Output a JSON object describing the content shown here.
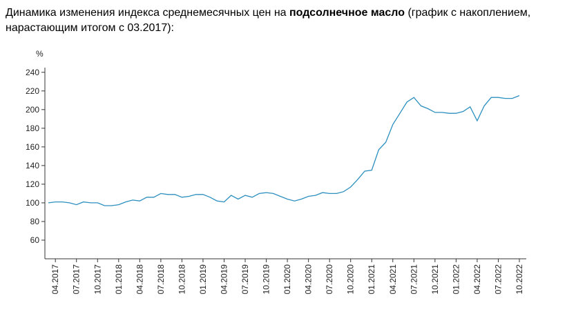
{
  "chart_data": {
    "type": "line",
    "title_parts": [
      "Динамика изменения индекса среднемесячных цен на ",
      "подсолнечное масло",
      " (график с накоплением, нарастающим итогом с 03.2017):"
    ],
    "y_label": "%",
    "categories": [
      null,
      "04.2017",
      null,
      null,
      "07.2017",
      null,
      null,
      "10.2017",
      null,
      null,
      "01.2018",
      null,
      null,
      "04.2018",
      null,
      null,
      "07.2018",
      null,
      null,
      "10.2018",
      null,
      null,
      "01.2019",
      null,
      null,
      "04.2019",
      null,
      null,
      "07.2019",
      null,
      null,
      "10.2019",
      null,
      null,
      "01.2020",
      null,
      null,
      "04.2020",
      null,
      null,
      "07.2020",
      null,
      null,
      "10.2020",
      null,
      null,
      "01.2021",
      null,
      null,
      "04.2021",
      null,
      null,
      "07.2021",
      null,
      null,
      "10.2021",
      null,
      null,
      "01.2022",
      null,
      null,
      "04.2022",
      null,
      null,
      "07.2022",
      null,
      null,
      "10.2022"
    ],
    "series": [
      {
        "name": null,
        "color": "#2b8fbf",
        "values": [
          100,
          101,
          101,
          100,
          98,
          101,
          100,
          100,
          97,
          97,
          98,
          101,
          103,
          102,
          106,
          106,
          110,
          109,
          109,
          106,
          107,
          109,
          109,
          106,
          102,
          101,
          108,
          104,
          108,
          106,
          110,
          111,
          110,
          107,
          104,
          102,
          104,
          107,
          108,
          111,
          110,
          110,
          112,
          117,
          125,
          134,
          135,
          157,
          165,
          184,
          196,
          208,
          213,
          204,
          201,
          197,
          197,
          196,
          196,
          198,
          203,
          188,
          204,
          213,
          213,
          212,
          212,
          215
        ]
      }
    ],
    "ylim": [
      40,
      245
    ],
    "yticks": [
      60,
      80,
      100,
      120,
      140,
      160,
      180,
      200,
      220,
      240
    ]
  }
}
